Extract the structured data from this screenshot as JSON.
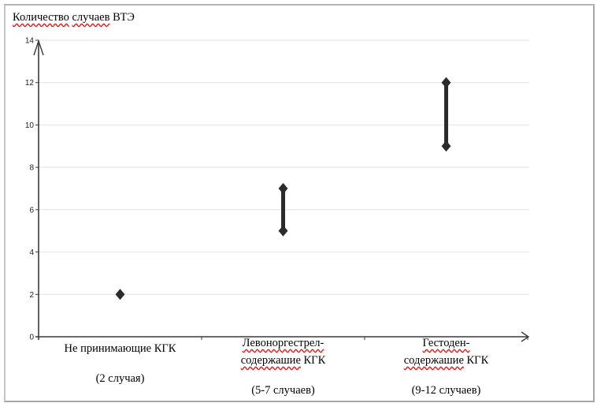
{
  "chart_data": {
    "type": "range",
    "title": "Количество случаев ВТЭ",
    "ylabel": "Количество случаев ВТЭ",
    "xlabel": "",
    "ylim": [
      0,
      14
    ],
    "yticks": [
      "0",
      "2",
      "4",
      "6",
      "8",
      "10",
      "12",
      "14"
    ],
    "grid": true,
    "categories": [
      {
        "line1": "Не принимающие КГК",
        "line2": "",
        "note": "(2 случая)"
      },
      {
        "line1": "Левоноргестрел-",
        "line2": "содержашие КГК",
        "note": "(5-7 случаев)"
      },
      {
        "line1": "Гестоден-",
        "line2": "содержашие КГК",
        "note": "(9-12 случаев)"
      }
    ],
    "series": [
      {
        "name": "ВТЭ",
        "low": [
          2,
          5,
          9
        ],
        "high": [
          2,
          7,
          12
        ]
      }
    ],
    "colors": {
      "marker": "#2b2b2b",
      "grid": "#e6e6e6",
      "axis": "#3a3a3a"
    }
  }
}
